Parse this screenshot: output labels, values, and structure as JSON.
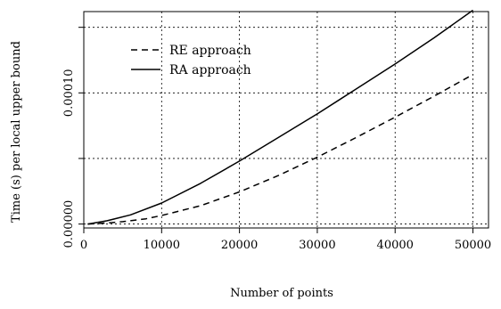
{
  "chart_data": {
    "type": "line",
    "title": "",
    "xlabel": "Number of points",
    "ylabel": "Time (s) per local upper bound",
    "xlim": [
      0,
      52000
    ],
    "ylim": [
      -3e-06,
      0.000162
    ],
    "x_ticks": [
      0,
      10000,
      20000,
      30000,
      40000,
      50000
    ],
    "x_tick_labels": [
      "0",
      "10000",
      "20000",
      "30000",
      "40000",
      "50000"
    ],
    "y_ticks": [
      0,
      5e-05,
      0.0001,
      0.00015
    ],
    "y_tick_labels": [
      "0.00000",
      "",
      "0.00010",
      ""
    ],
    "grid": true,
    "legend": "top-left",
    "series": [
      {
        "name": "RE approach",
        "style": "dashed",
        "x": [
          500,
          3000,
          5000,
          8000,
          10000,
          15000,
          20000,
          25000,
          30000,
          35000,
          40000,
          45000,
          50000
        ],
        "y": [
          0,
          8e-07,
          1.8e-06,
          4e-06,
          6.5e-06,
          1.4e-05,
          2.45e-05,
          3.7e-05,
          5.1e-05,
          6.6e-05,
          8.15e-05,
          9.75e-05,
          0.000114
        ]
      },
      {
        "name": "RA approach",
        "style": "solid",
        "x": [
          500,
          3000,
          6000,
          10000,
          15000,
          20000,
          25000,
          30000,
          35000,
          40000,
          45000,
          50000
        ],
        "y": [
          0,
          2.5e-06,
          7e-06,
          1.6e-05,
          3.1e-05,
          4.8e-05,
          6.6e-05,
          8.4e-05,
          0.000103,
          0.000122,
          0.000142,
          0.000163
        ]
      }
    ]
  }
}
